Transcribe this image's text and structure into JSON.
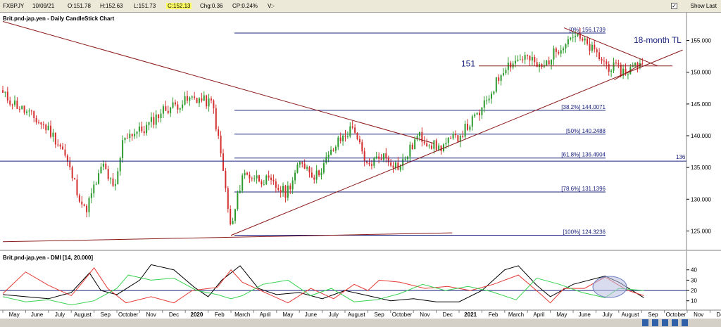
{
  "toolbar": {
    "symbol": "FXBPJY",
    "date": "10/09/21",
    "open": "O:151.78",
    "high": "H:152.63",
    "low": "L:151.73",
    "close": "C:152.13",
    "change": "Chg:0.36",
    "change_pct": "CP:0.24%",
    "volume": "V:-",
    "show_last_label": "Show Last",
    "show_last_checked": true
  },
  "chart_data": [
    {
      "type": "candlestick",
      "title": "Brit.pnd-jap.yen - Daily CandleStick Chart",
      "ylim": [
        122.5,
        158.5
      ],
      "y_ticks": [
        125,
        130,
        135,
        140,
        145,
        150,
        155
      ],
      "y_tick_labels": [
        "125.000",
        "130.000",
        "135.000",
        "140.000",
        "145.000",
        "150.000",
        "155.000"
      ],
      "x_labels": [
        "May",
        "June",
        "July",
        "August",
        "Sep",
        "October",
        "Nov",
        "Dec",
        "2020",
        "Feb",
        "March",
        "April",
        "May",
        "June",
        "July",
        "August",
        "Sep",
        "October",
        "Nov",
        "Dec",
        "2021",
        "Feb",
        "March",
        "April",
        "May",
        "June",
        "July",
        "August",
        "Sep",
        "October",
        "Nov",
        "Dec"
      ],
      "price_path": [
        {
          "t": 0.0,
          "price": 146.5
        },
        {
          "t": 2.0,
          "price": 141.0
        },
        {
          "t": 2.6,
          "price": 138.0
        },
        {
          "t": 3.6,
          "price": 128.0
        },
        {
          "t": 4.4,
          "price": 135.5
        },
        {
          "t": 4.9,
          "price": 131.0
        },
        {
          "t": 5.3,
          "price": 140.0
        },
        {
          "t": 6.2,
          "price": 141.0
        },
        {
          "t": 7.0,
          "price": 144.0
        },
        {
          "t": 8.4,
          "price": 146.0
        },
        {
          "t": 9.2,
          "price": 145.0
        },
        {
          "t": 9.6,
          "price": 136.0
        },
        {
          "t": 10.0,
          "price": 125.0
        },
        {
          "t": 10.5,
          "price": 134.0
        },
        {
          "t": 11.5,
          "price": 133.0
        },
        {
          "t": 12.4,
          "price": 131.0
        },
        {
          "t": 13.1,
          "price": 136.0
        },
        {
          "t": 13.7,
          "price": 133.5
        },
        {
          "t": 14.7,
          "price": 139.0
        },
        {
          "t": 15.4,
          "price": 141.5
        },
        {
          "t": 15.9,
          "price": 135.0
        },
        {
          "t": 16.6,
          "price": 137.0
        },
        {
          "t": 17.4,
          "price": 135.0
        },
        {
          "t": 18.2,
          "price": 140.0
        },
        {
          "t": 19.1,
          "price": 138.0
        },
        {
          "t": 20.0,
          "price": 140.0
        },
        {
          "t": 21.0,
          "price": 144.0
        },
        {
          "t": 22.0,
          "price": 151.0
        },
        {
          "t": 22.9,
          "price": 152.5
        },
        {
          "t": 23.6,
          "price": 150.5
        },
        {
          "t": 24.4,
          "price": 154.0
        },
        {
          "t": 25.0,
          "price": 156.0
        },
        {
          "t": 25.7,
          "price": 154.0
        },
        {
          "t": 26.5,
          "price": 151.0
        },
        {
          "t": 27.3,
          "price": 150.0
        },
        {
          "t": 28.1,
          "price": 152.0
        }
      ],
      "horizontal_levels": [
        {
          "label": "[0%] 156.1739",
          "value": 156.1739
        },
        {
          "label": "[38.2%] 144.0071",
          "value": 144.0071
        },
        {
          "label": "[50%] 140.2488",
          "value": 140.2488
        },
        {
          "label": "[61.8%] 136.4904",
          "value": 136.4904
        },
        {
          "label": "[78.6%] 131.1396",
          "value": 131.1396
        },
        {
          "label": "[100%] 124.3236",
          "value": 124.3236
        }
      ],
      "support_136": {
        "label": "136",
        "value": 136
      },
      "level_151": {
        "label": "151",
        "value": 151
      },
      "annotation": "18-month TL",
      "trendlines": [
        {
          "from": {
            "t": 0.0,
            "price": 158.0
          },
          "to": {
            "t": 18.9,
            "price": 138.8
          }
        },
        {
          "from": {
            "t": 10.0,
            "price": 124.3
          },
          "to": {
            "t": 29.8,
            "price": 153.5
          }
        },
        {
          "from": {
            "t": 0.0,
            "price": 123.3
          },
          "to": {
            "t": 19.7,
            "price": 124.7
          }
        },
        {
          "from": {
            "t": 24.6,
            "price": 157.0
          },
          "to": {
            "t": 28.7,
            "price": 151.0
          }
        },
        {
          "from": {
            "t": 26.8,
            "price": 148.8
          },
          "to": {
            "t": 28.0,
            "price": 151.3
          }
        }
      ]
    },
    {
      "type": "line",
      "title": "Brit.pnd-jap.yen - DMI [14, 20.000]",
      "ylim": [
        3,
        48
      ],
      "y_ticks": [
        10,
        20,
        30,
        40
      ],
      "y_tick_labels": [
        "10",
        "20",
        "30",
        "40"
      ],
      "reference_value": 20,
      "series": [
        {
          "color": "#000000",
          "points": [
            [
              0,
              16
            ],
            [
              1,
              14
            ],
            [
              2,
              12
            ],
            [
              3,
              18
            ],
            [
              3.8,
              37
            ],
            [
              4.3,
              20
            ],
            [
              5,
              16
            ],
            [
              6,
              30
            ],
            [
              6.5,
              45
            ],
            [
              7.5,
              40
            ],
            [
              8.4,
              23
            ],
            [
              9,
              14
            ],
            [
              9.6,
              30
            ],
            [
              10.4,
              44
            ],
            [
              11.2,
              22
            ],
            [
              12,
              16
            ],
            [
              13,
              18
            ],
            [
              14,
              12
            ],
            [
              15,
              20
            ],
            [
              16,
              15
            ],
            [
              17,
              10
            ],
            [
              18,
              12
            ],
            [
              19,
              9
            ],
            [
              20,
              9
            ],
            [
              21,
              20
            ],
            [
              22,
              40
            ],
            [
              22.6,
              44
            ],
            [
              23.4,
              25
            ],
            [
              24,
              14
            ],
            [
              25,
              26
            ],
            [
              26.4,
              34
            ],
            [
              27,
              28
            ],
            [
              28.1,
              13
            ]
          ]
        },
        {
          "color": "#e53935",
          "points": [
            [
              0,
              17
            ],
            [
              1,
              38
            ],
            [
              2,
              25
            ],
            [
              3,
              15
            ],
            [
              3.5,
              28
            ],
            [
              4,
              42
            ],
            [
              4.6,
              22
            ],
            [
              5.4,
              8
            ],
            [
              6.5,
              14
            ],
            [
              7.5,
              8
            ],
            [
              8.3,
              20
            ],
            [
              9.4,
              23
            ],
            [
              10,
              40
            ],
            [
              10.5,
              28
            ],
            [
              11.5,
              18
            ],
            [
              12.5,
              8
            ],
            [
              13.5,
              22
            ],
            [
              14.5,
              12
            ],
            [
              15.4,
              26
            ],
            [
              16,
              20
            ],
            [
              16.5,
              30
            ],
            [
              17.4,
              28
            ],
            [
              18.5,
              22
            ],
            [
              19.5,
              24
            ],
            [
              20.5,
              20
            ],
            [
              21.5,
              26
            ],
            [
              22.6,
              35
            ],
            [
              23.6,
              16
            ],
            [
              24,
              8
            ],
            [
              24.6,
              22
            ],
            [
              25.5,
              22
            ],
            [
              26.4,
              33
            ],
            [
              27.4,
              20
            ],
            [
              28.1,
              15
            ]
          ]
        },
        {
          "color": "#39d353",
          "points": [
            [
              0,
              14
            ],
            [
              1,
              9
            ],
            [
              2,
              11
            ],
            [
              3,
              6
            ],
            [
              4,
              10
            ],
            [
              5,
              22
            ],
            [
              5.5,
              35
            ],
            [
              6.5,
              30
            ],
            [
              7.5,
              32
            ],
            [
              8.5,
              20
            ],
            [
              9.4,
              16
            ],
            [
              10,
              12
            ],
            [
              10.5,
              15
            ],
            [
              11.4,
              26
            ],
            [
              12.5,
              30
            ],
            [
              13.5,
              15
            ],
            [
              14.4,
              22
            ],
            [
              15.4,
              9
            ],
            [
              16.4,
              11
            ],
            [
              17.4,
              17
            ],
            [
              18.4,
              26
            ],
            [
              19.4,
              20
            ],
            [
              20.4,
              24
            ],
            [
              21.4,
              19
            ],
            [
              22.5,
              11
            ],
            [
              23.4,
              32
            ],
            [
              24.4,
              26
            ],
            [
              25.4,
              18
            ],
            [
              26.4,
              13
            ],
            [
              27,
              22
            ],
            [
              28.1,
              20
            ]
          ]
        }
      ]
    }
  ]
}
